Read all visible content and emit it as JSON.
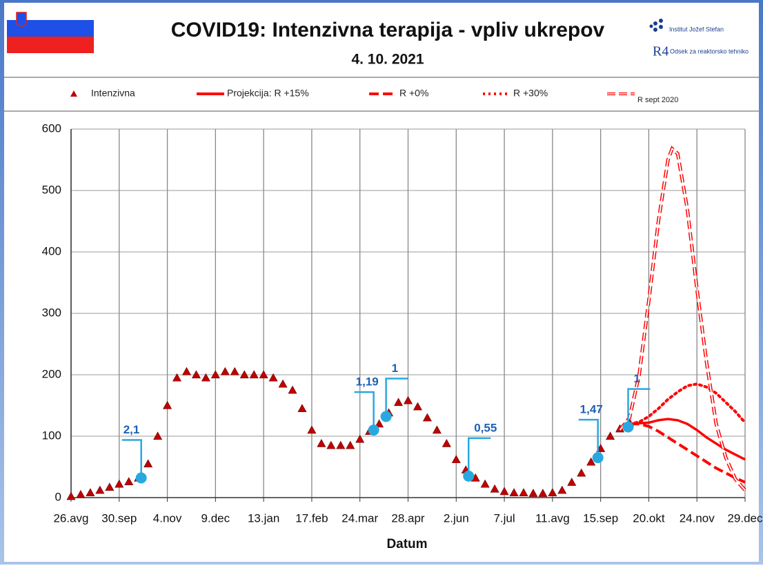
{
  "header": {
    "title": "COVID19: Intenzivna terapija - vpliv ukrepov",
    "subtitle": "4. 10. 2021",
    "institute": "Institut Jožef Stefan",
    "logo": "R4",
    "department": "Odsek za reaktorsko tehniko"
  },
  "chart_data": {
    "type": "line",
    "x_label": "Datum",
    "xlim": [
      0,
      490
    ],
    "xticks": [
      {
        "value": 0,
        "label": "26.avg"
      },
      {
        "value": 35,
        "label": "30.sep"
      },
      {
        "value": 70,
        "label": "4.nov"
      },
      {
        "value": 105,
        "label": "9.dec"
      },
      {
        "value": 140,
        "label": "13.jan"
      },
      {
        "value": 175,
        "label": "17.feb"
      },
      {
        "value": 210,
        "label": "24.mar"
      },
      {
        "value": 245,
        "label": "28.apr"
      },
      {
        "value": 280,
        "label": "2.jun"
      },
      {
        "value": 315,
        "label": "7.jul"
      },
      {
        "value": 350,
        "label": "11.avg"
      },
      {
        "value": 385,
        "label": "15.sep"
      },
      {
        "value": 420,
        "label": "20.okt"
      },
      {
        "value": 455,
        "label": "24.nov"
      },
      {
        "value": 490,
        "label": "29.dec"
      }
    ],
    "ylim": [
      0,
      600
    ],
    "yticks": [
      0,
      100,
      200,
      300,
      400,
      500,
      600
    ],
    "grid": true,
    "series": [
      {
        "name": "Intenzivna",
        "color": "#c00000",
        "style": "markers",
        "x": [
          0,
          7,
          14,
          21,
          28,
          35,
          42,
          49,
          56,
          63,
          70,
          77,
          84,
          91,
          98,
          105,
          112,
          119,
          126,
          133,
          140,
          147,
          154,
          161,
          168,
          175,
          182,
          189,
          196,
          203,
          210,
          217,
          224,
          231,
          238,
          245,
          252,
          259,
          266,
          273,
          280,
          287,
          294,
          301,
          308,
          315,
          322,
          329,
          336,
          343,
          350,
          357,
          364,
          371,
          378,
          385,
          392,
          399,
          406
        ],
        "values": [
          2,
          5,
          8,
          12,
          17,
          22,
          26,
          32,
          55,
          100,
          150,
          195,
          205,
          200,
          195,
          200,
          205,
          205,
          200,
          200,
          200,
          195,
          185,
          175,
          145,
          110,
          88,
          85,
          85,
          85,
          95,
          108,
          120,
          138,
          155,
          158,
          148,
          130,
          110,
          88,
          62,
          45,
          32,
          22,
          14,
          10,
          8,
          8,
          7,
          7,
          8,
          12,
          25,
          40,
          58,
          80,
          100,
          112,
          122
        ]
      },
      {
        "name": "Projekcija: R +15%",
        "color": "#ff0000",
        "style": "solid",
        "x": [
          406,
          413,
          420,
          427,
          434,
          441,
          448,
          455,
          462,
          469,
          476,
          483,
          490
        ],
        "values": [
          120,
          121,
          122,
          126,
          128,
          126,
          120,
          110,
          98,
          88,
          78,
          70,
          62
        ]
      },
      {
        "name": "R +0%",
        "color": "#ff0000",
        "style": "dashed",
        "x": [
          406,
          413,
          420,
          427,
          434,
          441,
          448,
          455,
          462,
          469,
          476,
          483,
          490
        ],
        "values": [
          120,
          120,
          116,
          108,
          98,
          88,
          78,
          68,
          58,
          48,
          40,
          32,
          25
        ]
      },
      {
        "name": "R +30%",
        "color": "#ff0000",
        "style": "dotted",
        "x": [
          406,
          413,
          420,
          427,
          434,
          441,
          448,
          455,
          462,
          469,
          476,
          483,
          490
        ],
        "values": [
          120,
          123,
          132,
          145,
          160,
          172,
          182,
          185,
          180,
          170,
          155,
          140,
          122
        ]
      },
      {
        "name": "R sept 2020",
        "color": "#ff0000",
        "style": "hollow",
        "x": [
          399,
          406,
          413,
          420,
          427,
          434,
          437,
          441,
          448,
          455,
          462,
          469,
          476,
          483,
          490
        ],
        "values": [
          110,
          130,
          200,
          320,
          450,
          550,
          568,
          560,
          470,
          340,
          220,
          120,
          65,
          30,
          12
        ]
      }
    ],
    "annotations": [
      {
        "text": "2,1",
        "x": 51,
        "y": 32,
        "side": "left"
      },
      {
        "text": "1,19",
        "x": 220,
        "y": 110,
        "side": "left"
      },
      {
        "text": "1",
        "x": 229,
        "y": 132,
        "side": "right"
      },
      {
        "text": "0,55",
        "x": 289,
        "y": 35,
        "side": "right"
      },
      {
        "text": "1,47",
        "x": 383,
        "y": 65,
        "side": "left"
      },
      {
        "text": "1",
        "x": 405,
        "y": 115,
        "side": "right"
      }
    ],
    "annotation_color": "#29a8e0"
  }
}
